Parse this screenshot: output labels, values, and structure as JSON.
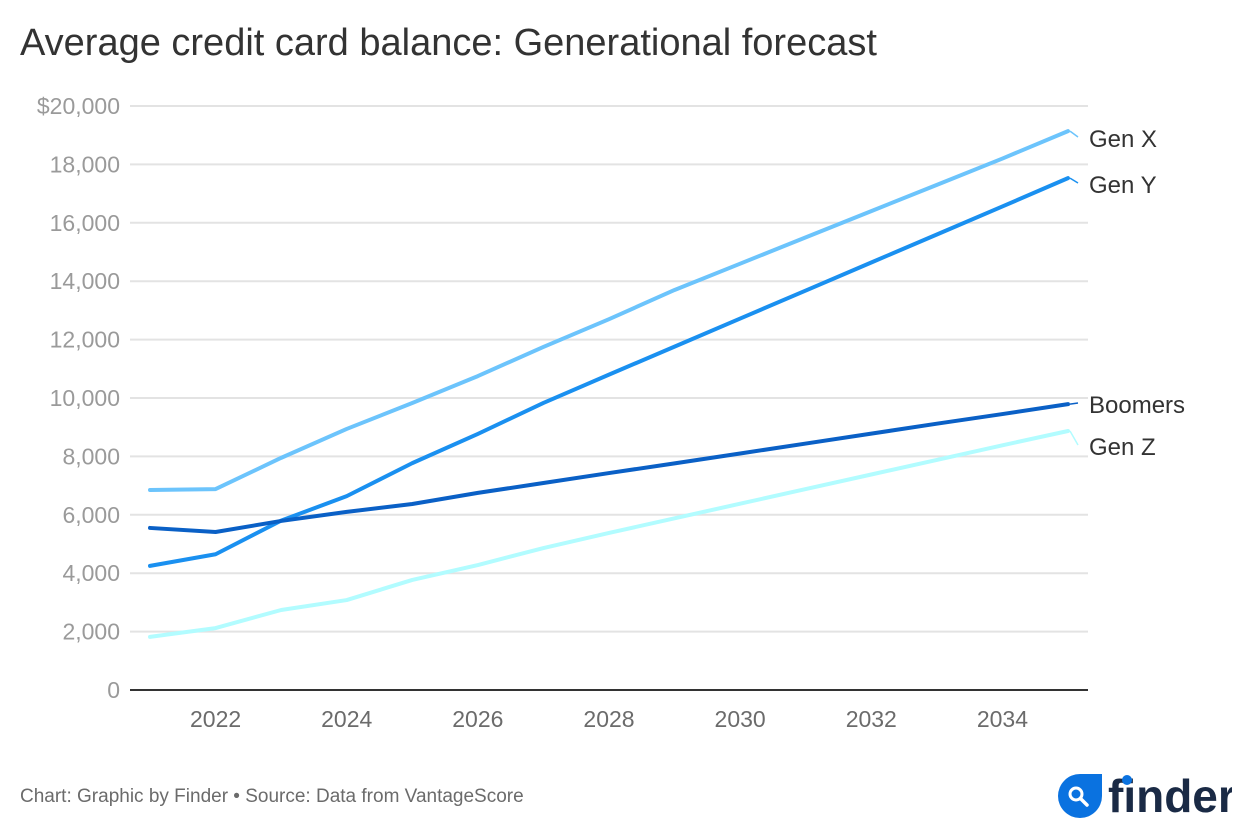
{
  "chart_data": {
    "type": "line",
    "title": "Average credit card balance: Generational forecast",
    "xlabel": "",
    "ylabel": "",
    "x": [
      2021,
      2022,
      2023,
      2024,
      2025,
      2026,
      2027,
      2028,
      2029,
      2030,
      2031,
      2032,
      2033,
      2034,
      2035
    ],
    "xlim": [
      2021,
      2035
    ],
    "ylim": [
      0,
      20000
    ],
    "xticks": [
      2022,
      2024,
      2026,
      2028,
      2030,
      2032,
      2034
    ],
    "yticks": [
      0,
      2000,
      4000,
      6000,
      8000,
      10000,
      12000,
      14000,
      16000,
      18000,
      20000
    ],
    "ytick_labels": [
      "0",
      "2,000",
      "4,000",
      "6,000",
      "8,000",
      "10,000",
      "12,000",
      "14,000",
      "16,000",
      "18,000",
      "$20,000"
    ],
    "grid": true,
    "legend": "direct labels at line ends (right)",
    "series": [
      {
        "name": "Gen X",
        "color": "#6cc4fc",
        "values": [
          6850,
          6880,
          7950,
          8940,
          9830,
          10750,
          11750,
          12700,
          13700,
          14600,
          15500,
          16400,
          17300,
          18200,
          19140
        ]
      },
      {
        "name": "Gen Y",
        "color": "#1a90f0",
        "values": [
          4250,
          4650,
          5800,
          6640,
          7770,
          8770,
          9830,
          10800,
          11760,
          12720,
          13680,
          14640,
          15600,
          16560,
          17530
        ]
      },
      {
        "name": "Boomers",
        "color": "#0a60c6",
        "values": [
          5550,
          5410,
          5790,
          6100,
          6370,
          6750,
          7090,
          7430,
          7760,
          8100,
          8440,
          8780,
          9120,
          9450,
          9790
        ]
      },
      {
        "name": "Gen Z",
        "color": "#b2fcff",
        "values": [
          1820,
          2120,
          2740,
          3080,
          3770,
          4280,
          4860,
          5380,
          5880,
          6380,
          6880,
          7380,
          7880,
          8380,
          8870
        ]
      }
    ]
  },
  "footer": "Chart: Graphic by Finder • Source: Data from VantageScore",
  "logo": {
    "text": "finder",
    "icon": "search-icon",
    "brand_color": "#0a72e0",
    "text_color": "#1a2a45"
  }
}
